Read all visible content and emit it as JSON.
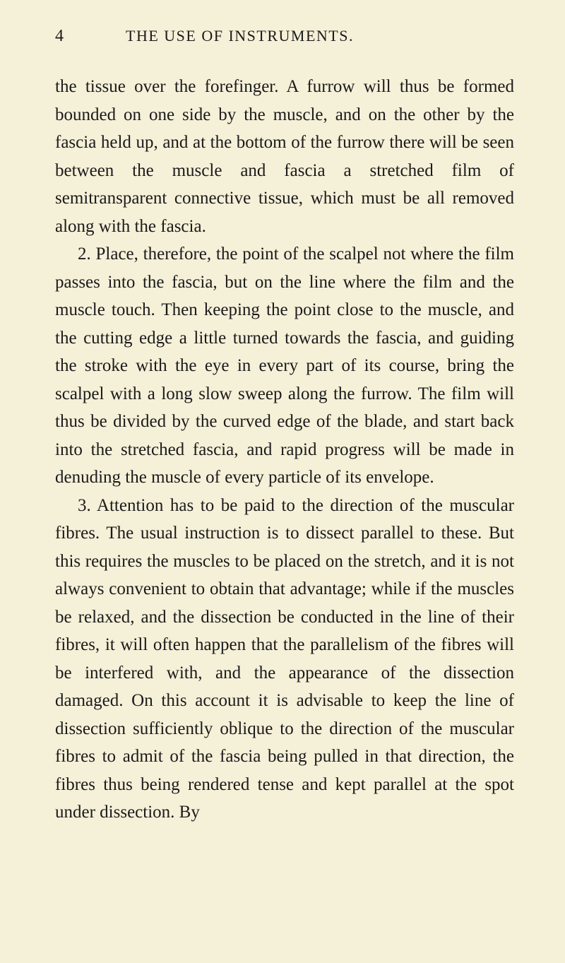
{
  "page": {
    "number": "4",
    "header": "THE USE OF INSTRUMENTS.",
    "background_color": "#f5f0d8",
    "text_color": "#1a1a1a",
    "font_family": "Georgia, Times New Roman, serif",
    "body_fontsize": 25,
    "header_fontsize": 22,
    "line_height": 1.58
  },
  "paragraphs": {
    "p1": "the tissue over the forefinger. A furrow will thus be formed bounded on one side by the muscle, and on the other by the fascia held up, and at the bottom of the furrow there will be seen between the muscle and fascia a stretched film of semitransparent connec­tive tissue, which must be all removed along with the fascia.",
    "p2": "2. Place, therefore, the point of the scalpel not where the film passes into the fascia, but on the line where the film and the muscle touch. Then keeping the point close to the muscle, and the cutting edge a little turned towards the fascia, and guiding the stroke with the eye in every part of its course, bring the scalpel with a long slow sweep along the furrow. The film will thus be divided by the curved edge of the blade, and start back into the stretched fascia, and rapid progress will be made in denuding the muscle of every particle of its envelope.",
    "p3": "3. Attention has to be paid to the direction of the muscular fibres. The usual instruction is to dissect parallel to these. But this requires the muscles to be placed on the stretch, and it is not always convenient to obtain that advantage; while if the muscles be relaxed, and the dissection be conducted in the line of their fibres, it will often happen that the parallelism of the fibres will be interfered with, and the appearance of the dissection damaged. On this account it is advisable to keep the line of dissection sufficiently oblique to the direction of the muscular fibres to admit of the fascia being pulled in that direction, the fibres thus being rendered tense and kept parallel at the spot under dissection. By"
  }
}
